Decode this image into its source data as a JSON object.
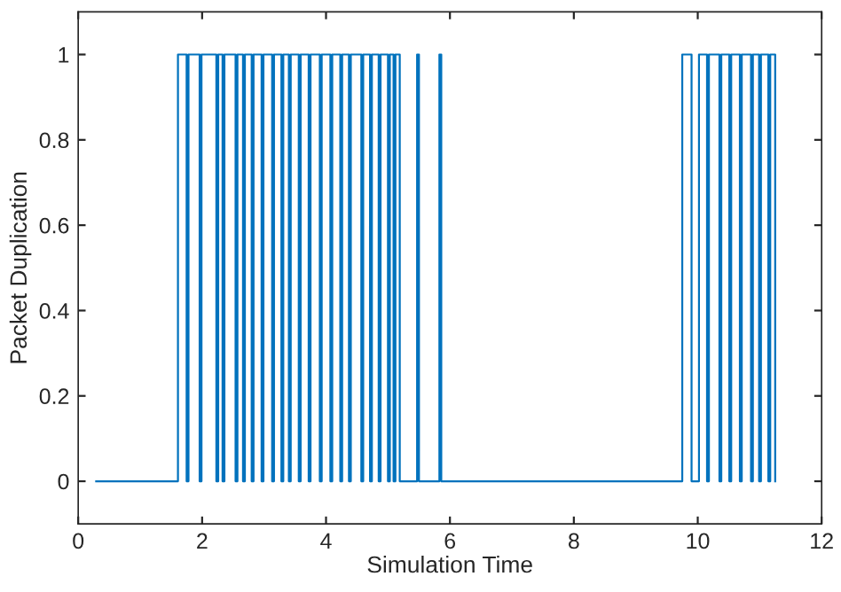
{
  "chart_data": {
    "type": "step",
    "xlabel": "Simulation Time",
    "ylabel": "Packet Duplication",
    "xlim": [
      0,
      12
    ],
    "xticks": [
      0,
      2,
      4,
      6,
      8,
      10,
      12
    ],
    "ylim": [
      -0.1,
      1.1
    ],
    "yticks": [
      0,
      0.2,
      0.4,
      0.6,
      0.8,
      1
    ],
    "grid": false,
    "line_style": "solid",
    "marker": "none",
    "series": [
      {
        "color": "#0072bd",
        "x": [
          0.29,
          1.61,
          1.75,
          1.78,
          1.96,
          1.99,
          2.23,
          2.26,
          2.33,
          2.36,
          2.54,
          2.57,
          2.66,
          2.69,
          2.8,
          2.83,
          2.96,
          2.99,
          3.13,
          3.16,
          3.28,
          3.31,
          3.4,
          3.43,
          3.56,
          3.59,
          3.72,
          3.75,
          3.9,
          3.93,
          4.07,
          4.1,
          4.23,
          4.26,
          4.37,
          4.4,
          4.57,
          4.6,
          4.71,
          4.74,
          4.85,
          4.88,
          5.0,
          5.03,
          5.09,
          5.12,
          5.19,
          5.47,
          5.5,
          5.83,
          5.86,
          9.75,
          9.9,
          10.02,
          10.15,
          10.18,
          10.35,
          10.38,
          10.51,
          10.54,
          10.68,
          10.71,
          10.86,
          10.89,
          10.99,
          11.02,
          11.14,
          11.17,
          11.25
        ],
        "values": [
          0,
          1,
          0,
          1,
          0,
          1,
          0,
          1,
          0,
          1,
          0,
          1,
          0,
          1,
          0,
          1,
          0,
          1,
          0,
          1,
          0,
          1,
          0,
          1,
          0,
          1,
          0,
          1,
          0,
          1,
          0,
          1,
          0,
          1,
          0,
          1,
          0,
          1,
          0,
          1,
          0,
          1,
          0,
          1,
          0,
          1,
          0,
          1,
          0,
          1,
          0,
          1,
          0,
          1,
          0,
          1,
          0,
          1,
          0,
          1,
          0,
          1,
          0,
          1,
          0,
          1,
          0,
          1,
          0
        ]
      }
    ]
  }
}
